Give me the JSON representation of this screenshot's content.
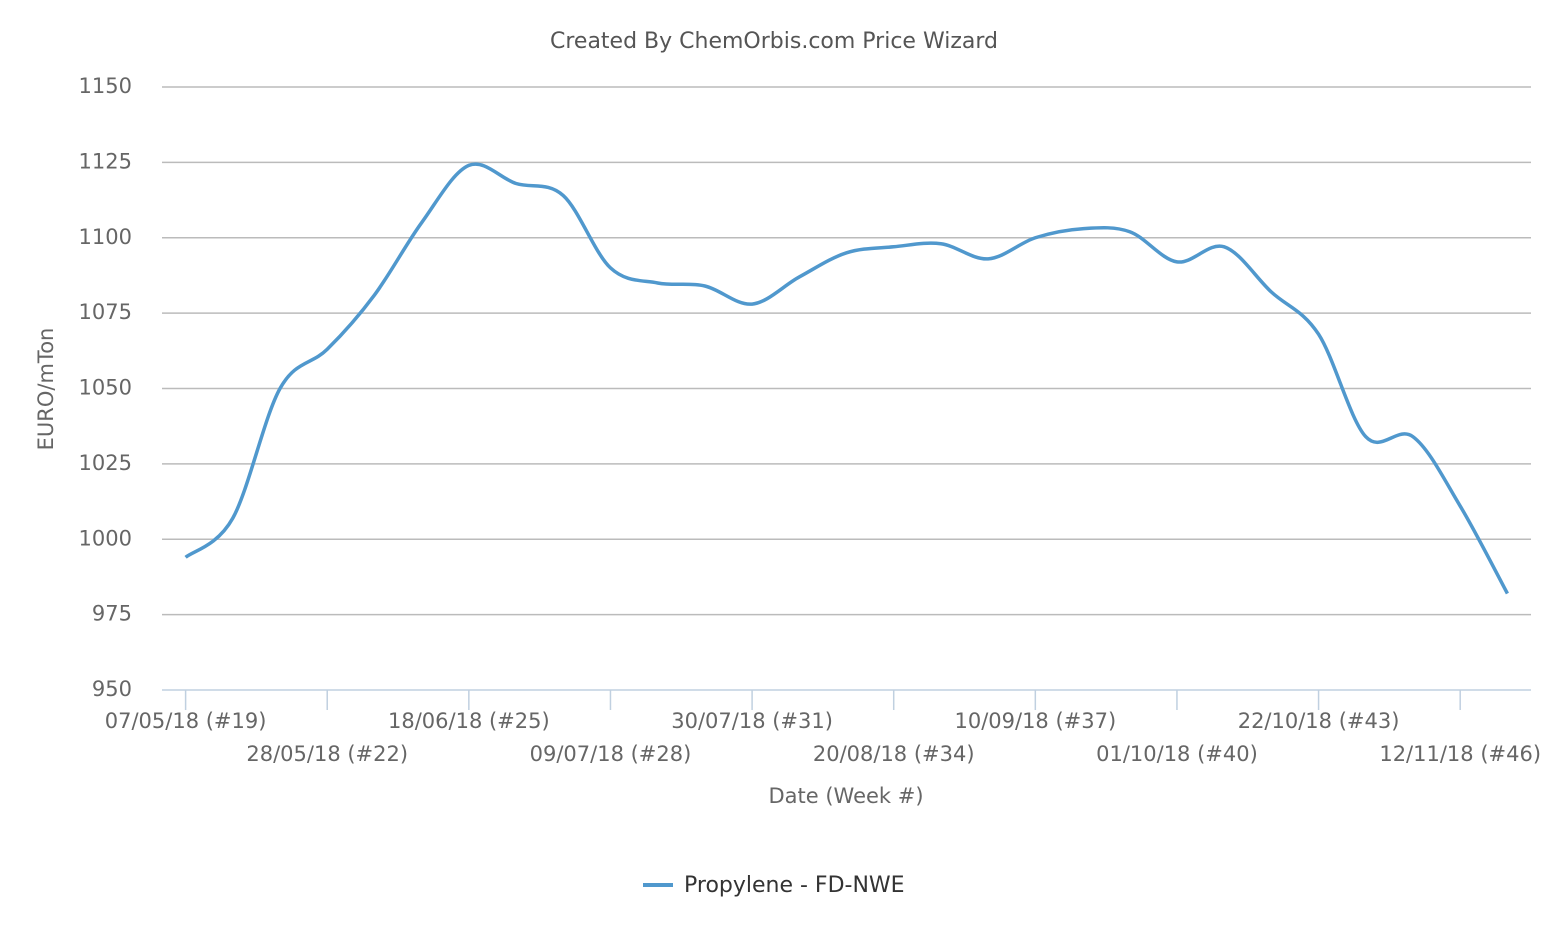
{
  "chart_data": {
    "type": "line",
    "title": "Created By ChemOrbis.com Price Wizard",
    "y_label": "EURO/mTon",
    "x_label": "Date (Week #)",
    "categories": [
      "07/05/18 (#19)",
      null,
      null,
      "28/05/18 (#22)",
      null,
      null,
      "18/06/18 (#25)",
      null,
      null,
      "09/07/18 (#28)",
      null,
      null,
      "30/07/18 (#31)",
      null,
      null,
      "20/08/18 (#34)",
      null,
      null,
      "10/09/18 (#37)",
      null,
      null,
      "01/10/18 (#40)",
      null,
      null,
      "22/10/18 (#43)",
      null,
      null,
      "12/11/18 (#46)",
      null
    ],
    "series": [
      {
        "name": "Propylene - FD-NWE",
        "color": "#5098cd",
        "values": [
          994,
          1007,
          1050,
          1063,
          1081,
          1105,
          1124,
          1118,
          1114,
          1090,
          1085,
          1084,
          1078,
          1087,
          1095,
          1097,
          1098,
          1093,
          1100,
          1103,
          1102,
          1092,
          1097,
          1082,
          1068,
          1034,
          1034,
          1011,
          982
        ]
      }
    ],
    "ylim": [
      950,
      1150
    ],
    "yticks": [
      950,
      975,
      1000,
      1025,
      1050,
      1075,
      1100,
      1125,
      1150
    ],
    "grid": true,
    "legend": "bottom"
  }
}
